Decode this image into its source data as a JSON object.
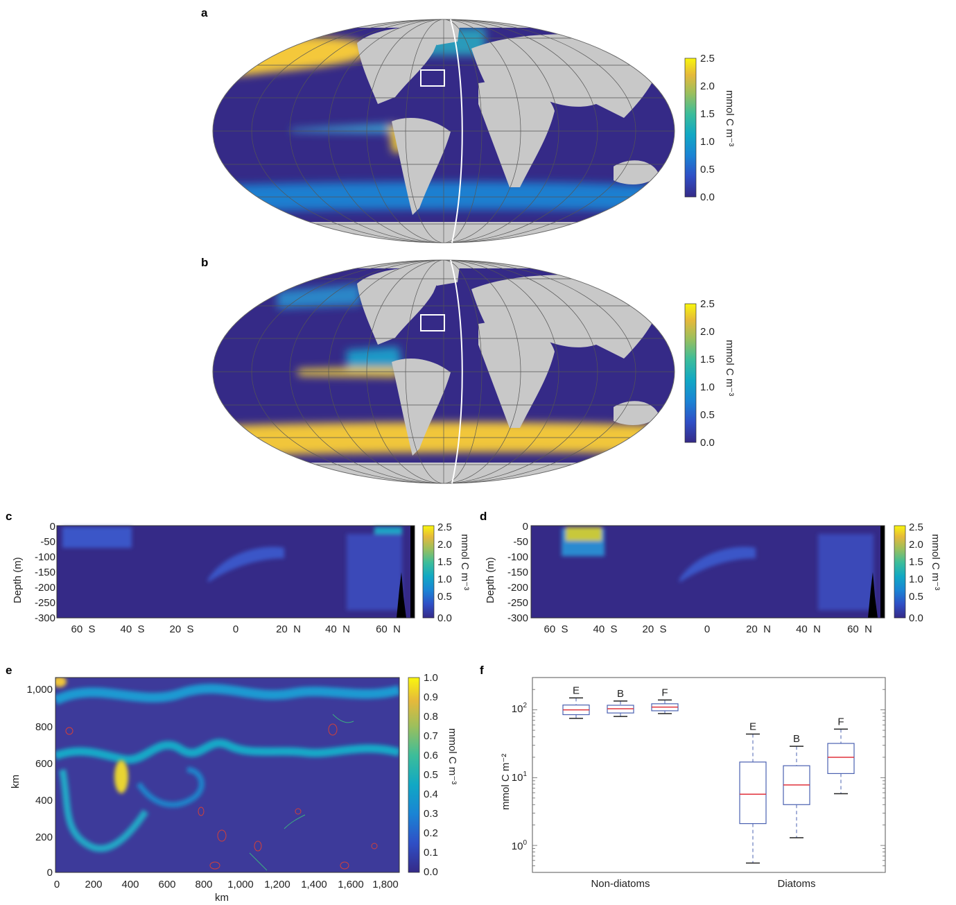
{
  "panel_labels": [
    "a",
    "b",
    "c",
    "d",
    "e",
    "f"
  ],
  "colors": {
    "ocean_low": "#352a87",
    "land": "#c8c8c8",
    "colormap": [
      "#352a87",
      "#2f4fc6",
      "#1a84d4",
      "#11a8c4",
      "#3cbd9a",
      "#9cbf5c",
      "#e5b93b",
      "#f9f60e"
    ],
    "box_edge": "#4a60b0",
    "median": "#e0303a"
  },
  "chart_data": [
    {
      "id": "a",
      "type": "heatmap",
      "title": "",
      "colorbar": {
        "label": "mmol C m⁻³",
        "ticks": [
          "2.5",
          "2.0",
          "1.5",
          "1.0",
          "0.5",
          "0.0"
        ],
        "range": [
          0.0,
          2.5
        ]
      },
      "description_values": "Global Mollweide map of surface concentration; high values in North Pacific and equatorial/eastern upwelling; moderate Southern Ocean band"
    },
    {
      "id": "b",
      "type": "heatmap",
      "title": "",
      "colorbar": {
        "label": "mmol C m⁻³",
        "ticks": [
          "2.5",
          "2.0",
          "1.5",
          "1.0",
          "0.5",
          "0.0"
        ],
        "range": [
          0.0,
          2.5
        ]
      },
      "description_values": "Global Mollweide map; high values in Southern Ocean band and eastern equatorial Pacific"
    },
    {
      "id": "c",
      "type": "heatmap",
      "ylabel": "Depth (m)",
      "yticks": [
        "0",
        "-50",
        "-100",
        "-150",
        "-200",
        "-250",
        "-300"
      ],
      "xticks": [
        "60  S",
        "40  S",
        "20  S",
        "0",
        "20  N",
        "40  N",
        "60  N"
      ],
      "colorbar": {
        "label": "mmol C m⁻³",
        "ticks": [
          "2.5",
          "2.0",
          "1.5",
          "1.0",
          "0.5",
          "0.0"
        ],
        "range": [
          0.0,
          2.5
        ]
      }
    },
    {
      "id": "d",
      "type": "heatmap",
      "ylabel": "Depth (m)",
      "yticks": [
        "0",
        "-50",
        "-100",
        "-150",
        "-200",
        "-250",
        "-300"
      ],
      "xticks": [
        "60  S",
        "40  S",
        "20  S",
        "0",
        "20  N",
        "40  N",
        "60  N"
      ],
      "colorbar": {
        "label": "mmol C m⁻³",
        "ticks": [
          "2.5",
          "2.0",
          "1.5",
          "1.0",
          "0.5",
          "0.0"
        ],
        "range": [
          0.0,
          2.5
        ]
      }
    },
    {
      "id": "e",
      "type": "heatmap",
      "xlabel": "km",
      "ylabel": "km",
      "xticks": [
        "0",
        "200",
        "400",
        "600",
        "800",
        "1,000",
        "1,200",
        "1,400",
        "1,600",
        "1,800"
      ],
      "yticks": [
        "1,000",
        "800",
        "600",
        "400",
        "200",
        "0"
      ],
      "colorbar": {
        "label": "mmol C m⁻³",
        "ticks": [
          "1.0",
          "0.9",
          "0.8",
          "0.7",
          "0.6",
          "0.5",
          "0.4",
          "0.3",
          "0.2",
          "0.1",
          "0.0"
        ],
        "range": [
          0.0,
          1.0
        ]
      }
    },
    {
      "id": "f",
      "type": "box",
      "ylabel": "mmol C m⁻²",
      "yscale": "log",
      "ylim": [
        0.4,
        300
      ],
      "yticks": [
        {
          "base": "10",
          "exp": "2"
        },
        {
          "base": "10",
          "exp": "1"
        },
        {
          "base": "10",
          "exp": "0"
        }
      ],
      "categories": [
        "Non-diatoms",
        "Diatoms"
      ],
      "boxes": [
        {
          "group": "Non-diatoms",
          "label": "E",
          "whislo": 75,
          "q1": 85,
          "med": 100,
          "q3": 118,
          "whishi": 150
        },
        {
          "group": "Non-diatoms",
          "label": "B",
          "whislo": 80,
          "q1": 90,
          "med": 104,
          "q3": 117,
          "whishi": 135
        },
        {
          "group": "Non-diatoms",
          "label": "F",
          "whislo": 88,
          "q1": 97,
          "med": 110,
          "q3": 123,
          "whishi": 140
        },
        {
          "group": "Diatoms",
          "label": "E",
          "whislo": 0.55,
          "q1": 2.1,
          "med": 5.7,
          "q3": 17,
          "whishi": 44
        },
        {
          "group": "Diatoms",
          "label": "B",
          "whislo": 1.3,
          "q1": 4.0,
          "med": 7.8,
          "q3": 15,
          "whishi": 29
        },
        {
          "group": "Diatoms",
          "label": "F",
          "whislo": 5.8,
          "q1": 11.5,
          "med": 20,
          "q3": 32,
          "whishi": 52
        }
      ]
    }
  ]
}
